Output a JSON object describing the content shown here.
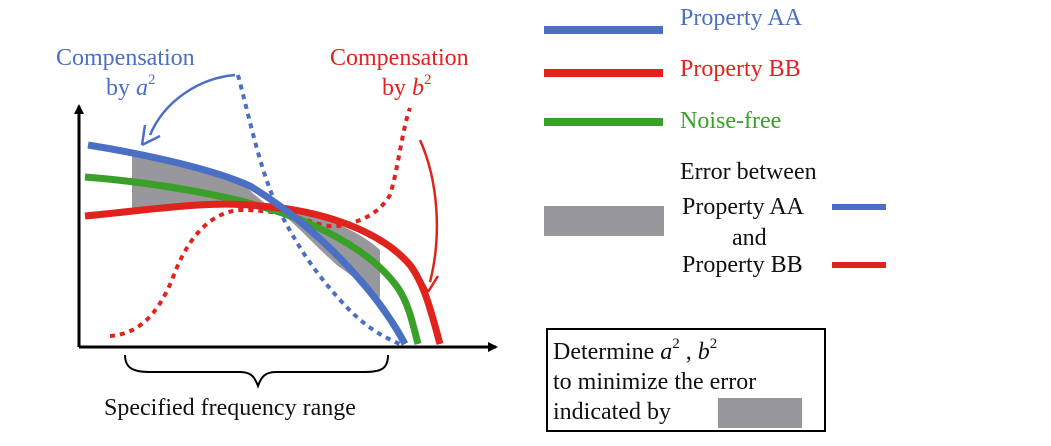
{
  "left_labels": {
    "comp_a_line1": "Compensation",
    "comp_a_line2_prefix": "by ",
    "comp_a_var": "a",
    "comp_a_exp": "2",
    "comp_b_line1": "Compensation",
    "comp_b_line2_prefix": "by ",
    "comp_b_var": "b",
    "comp_b_exp": "2",
    "x_range": "Specified frequency range"
  },
  "legend": {
    "property_aa": "Property AA",
    "property_bb": "Property BB",
    "noise_free": "Noise-free",
    "error_line1": "Error between",
    "error_line2": "Property AA",
    "error_line3": "and",
    "error_line4": "Property BB"
  },
  "box": {
    "line1_prefix": "Determine ",
    "var_a": "a",
    "exp_a": "2",
    "sep": " , ",
    "var_b": "b",
    "exp_b": "2",
    "line2": "to minimize the error",
    "line3": "indicated by"
  },
  "colors": {
    "blue": "#4a6fc4",
    "red": "#e0231c",
    "green": "#3aa02a",
    "gray": "#98989c"
  }
}
